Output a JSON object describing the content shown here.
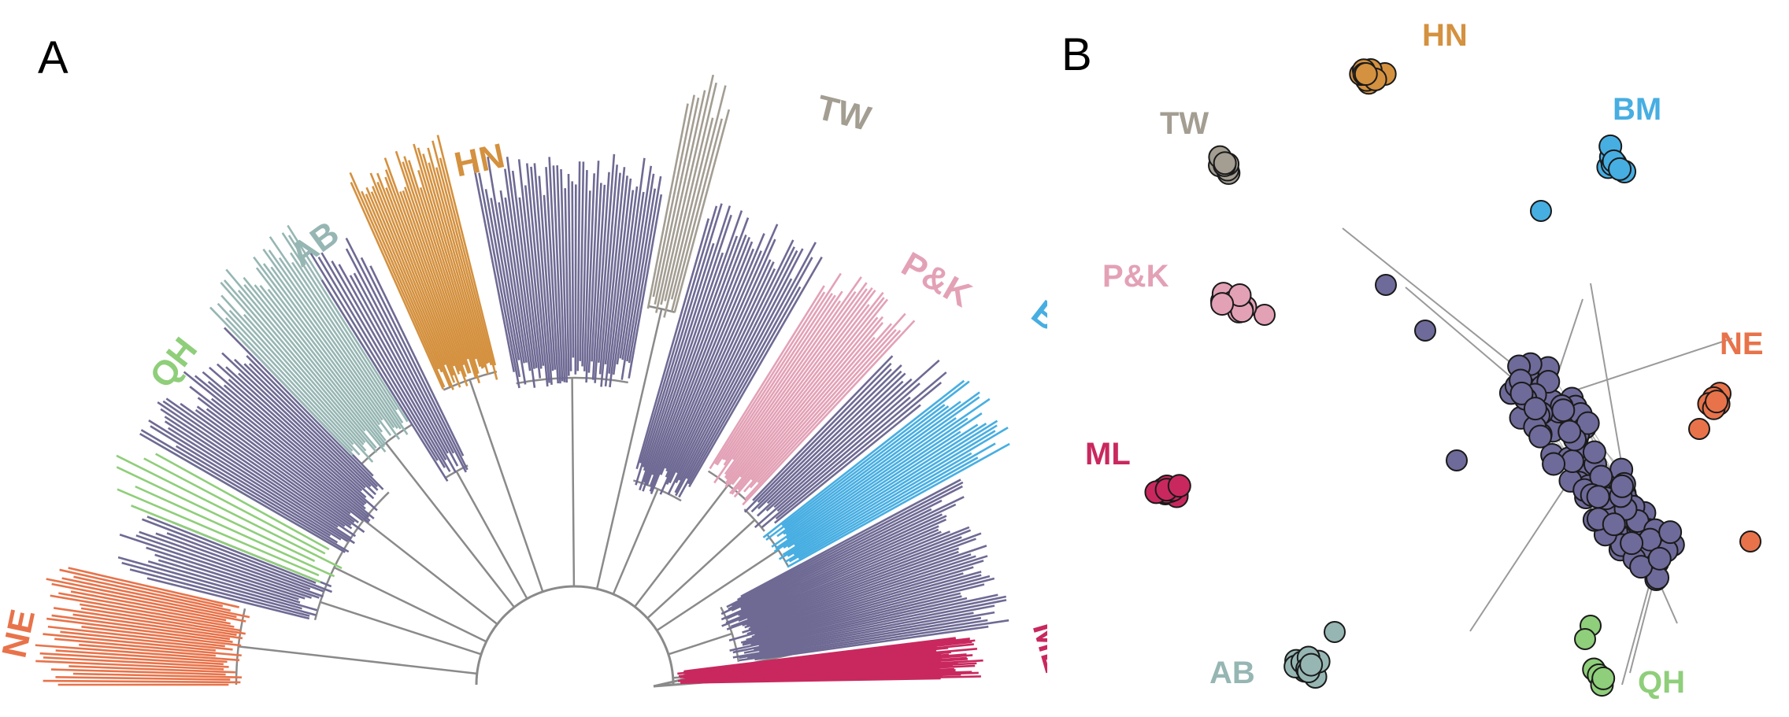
{
  "panels": {
    "a": {
      "letter": "A"
    },
    "b": {
      "letter": "B"
    }
  },
  "colors": {
    "background_lineage": "#6e6a94",
    "tree_backbone": "#8a8a8a",
    "NE": "#e8734a",
    "QH": "#8fce7a",
    "AB": "#96b6b3",
    "HN": "#d4913f",
    "TW": "#a39d92",
    "P&K": "#e3a1b6",
    "BM": "#47aee2",
    "ML": "#c9285f",
    "network_core": "#6e6a99",
    "network_edge": "#9a9a9a"
  },
  "tree": {
    "layout": "fan",
    "clades": [
      {
        "key": "ne",
        "label": "NE",
        "color_key": "NE",
        "tip_count": 32
      },
      {
        "key": "qh",
        "label": "QH",
        "color_key": "QH",
        "tip_count": 8
      },
      {
        "key": "ab",
        "label": "AB",
        "color_key": "AB",
        "tip_count": 28
      },
      {
        "key": "hn",
        "label": "HN",
        "color_key": "HN",
        "tip_count": 32
      },
      {
        "key": "tw",
        "label": "TW",
        "color_key": "TW",
        "tip_count": 10
      },
      {
        "key": "pk",
        "label": "P&K",
        "color_key": "P&K",
        "tip_count": 26
      },
      {
        "key": "bm",
        "label": "BM",
        "color_key": "BM",
        "tip_count": 22
      },
      {
        "key": "ml",
        "label": "ML",
        "color_key": "ML",
        "tip_count": 36
      }
    ]
  },
  "network": {
    "clusters": [
      {
        "key": "hn",
        "label": "HN",
        "color_key": "HN",
        "node_count": 14
      },
      {
        "key": "tw",
        "label": "TW",
        "color_key": "TW",
        "node_count": 7
      },
      {
        "key": "bm",
        "label": "BM",
        "color_key": "BM",
        "node_count": 10
      },
      {
        "key": "pk",
        "label": "P&K",
        "color_key": "P&K",
        "node_count": 10
      },
      {
        "key": "ne",
        "label": "NE",
        "color_key": "NE",
        "node_count": 10
      },
      {
        "key": "ml",
        "label": "ML",
        "color_key": "ML",
        "node_count": 14
      },
      {
        "key": "ab",
        "label": "AB",
        "color_key": "AB",
        "node_count": 14
      },
      {
        "key": "qh",
        "label": "QH",
        "color_key": "QH",
        "node_count": 4
      }
    ]
  }
}
